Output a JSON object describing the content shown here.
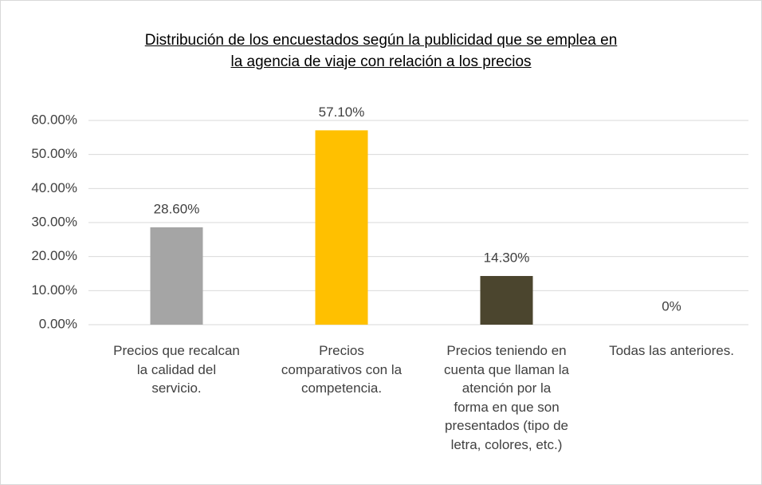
{
  "chart_data": {
    "type": "bar",
    "title": "Distribución de los encuestados según la publicidad que se emplea en\nla agencia de viaje con relación a los precios",
    "categories": [
      "Precios que recalcan\nla calidad del\nservicio.",
      "Precios\ncomparativos con la\ncompetencia.",
      "Precios teniendo en\ncuenta que llaman la\natención por la\nforma en que son\npresentados (tipo de\nletra, colores, etc.)",
      "Todas las anteriores."
    ],
    "values": [
      28.6,
      57.1,
      14.3,
      0
    ],
    "value_labels": [
      "28.60%",
      "57.10%",
      "14.30%",
      "0%"
    ],
    "colors": [
      "#a5a5a5",
      "#ffc000",
      "#4b452e",
      "#5b9bd5"
    ],
    "ylim": [
      0,
      60
    ],
    "yticks": [
      {
        "value": 0,
        "label": "0.00%"
      },
      {
        "value": 10,
        "label": "10.00%"
      },
      {
        "value": 20,
        "label": "20.00%"
      },
      {
        "value": 30,
        "label": "30.00%"
      },
      {
        "value": 40,
        "label": "40.00%"
      },
      {
        "value": 50,
        "label": "50.00%"
      },
      {
        "value": 60,
        "label": "60.00%"
      }
    ],
    "grid": true
  }
}
